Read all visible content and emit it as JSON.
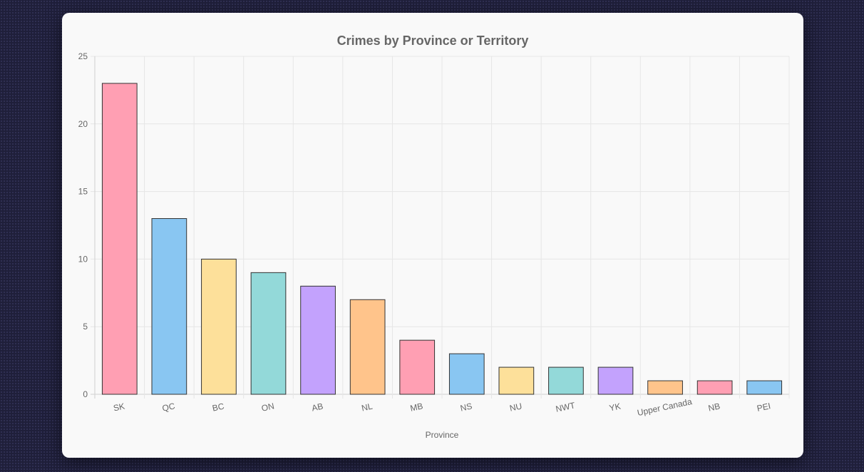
{
  "chart_data": {
    "type": "bar",
    "title": "Crimes by Province or Territory",
    "xlabel": "Province",
    "ylabel": "",
    "ylim": [
      0,
      25
    ],
    "yticks": [
      0,
      5,
      10,
      15,
      20,
      25
    ],
    "grid": true,
    "legend": "none",
    "categories": [
      "SK",
      "QC",
      "BC",
      "ON",
      "AB",
      "NL",
      "MB",
      "NS",
      "NU",
      "NWT",
      "YK",
      "Upper Canada",
      "NB",
      "PEI"
    ],
    "values": [
      23,
      13,
      10,
      9,
      8,
      7,
      4,
      3,
      2,
      2,
      2,
      1,
      1,
      1
    ],
    "colors": [
      "#ff9fb3",
      "#89c6f2",
      "#fde09a",
      "#93d9d9",
      "#c3a2fd",
      "#ffc48b",
      "#ff9fb3",
      "#89c6f2",
      "#fde09a",
      "#93d9d9",
      "#c3a2fd",
      "#ffc48b",
      "#ff9fb3",
      "#89c6f2"
    ]
  }
}
